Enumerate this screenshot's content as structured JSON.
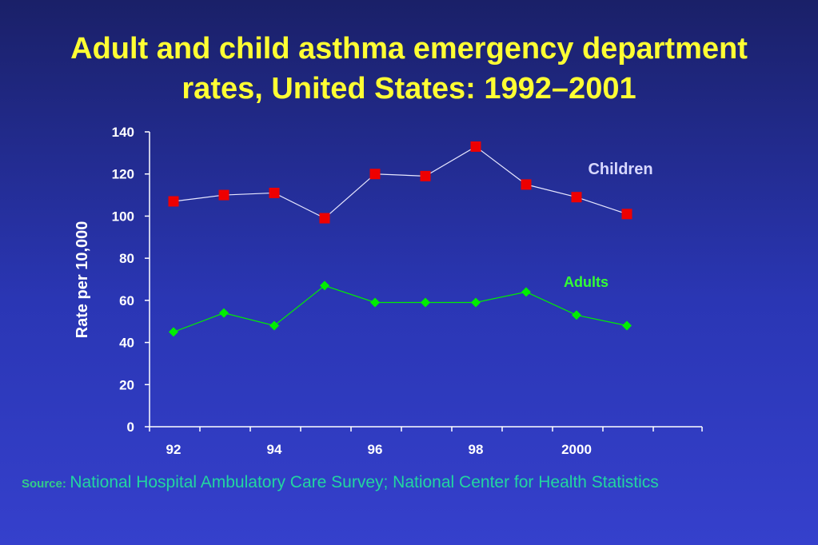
{
  "title_lines": [
    "Adult and child asthma emergency department",
    "rates, United States: 1992–2001"
  ],
  "source": {
    "label": "Source:",
    "text": "National Hospital Ambulatory Care Survey; National Center for Health Statistics"
  },
  "colors": {
    "title": "#ffff33",
    "children": "#ee0000",
    "adults": "#00ee00",
    "axis": "#ffffff",
    "children_label": "#d8d8ff",
    "adults_label": "#33ff33",
    "source": "#22d6a0"
  },
  "chart_data": {
    "type": "line",
    "title": "Adult and child asthma emergency department rates, United States: 1992–2001",
    "xlabel": "",
    "ylabel": "Rate per 10,000",
    "x": [
      1992,
      1993,
      1994,
      1995,
      1996,
      1997,
      1998,
      1999,
      2000,
      2001
    ],
    "x_tick_labels": [
      "92",
      "94",
      "96",
      "98",
      "2000"
    ],
    "x_tick_positions": [
      1992,
      1994,
      1996,
      1998,
      2000
    ],
    "ylim": [
      0,
      140
    ],
    "y_ticks": [
      0,
      20,
      40,
      60,
      80,
      100,
      120,
      140
    ],
    "grid": false,
    "series": [
      {
        "name": "Children",
        "marker": "square",
        "values": [
          107,
          110,
          111,
          99,
          120,
          119,
          133,
          115,
          109,
          101
        ]
      },
      {
        "name": "Adults",
        "marker": "diamond",
        "values": [
          45,
          54,
          48,
          67,
          59,
          59,
          59,
          64,
          53,
          48
        ]
      }
    ]
  }
}
